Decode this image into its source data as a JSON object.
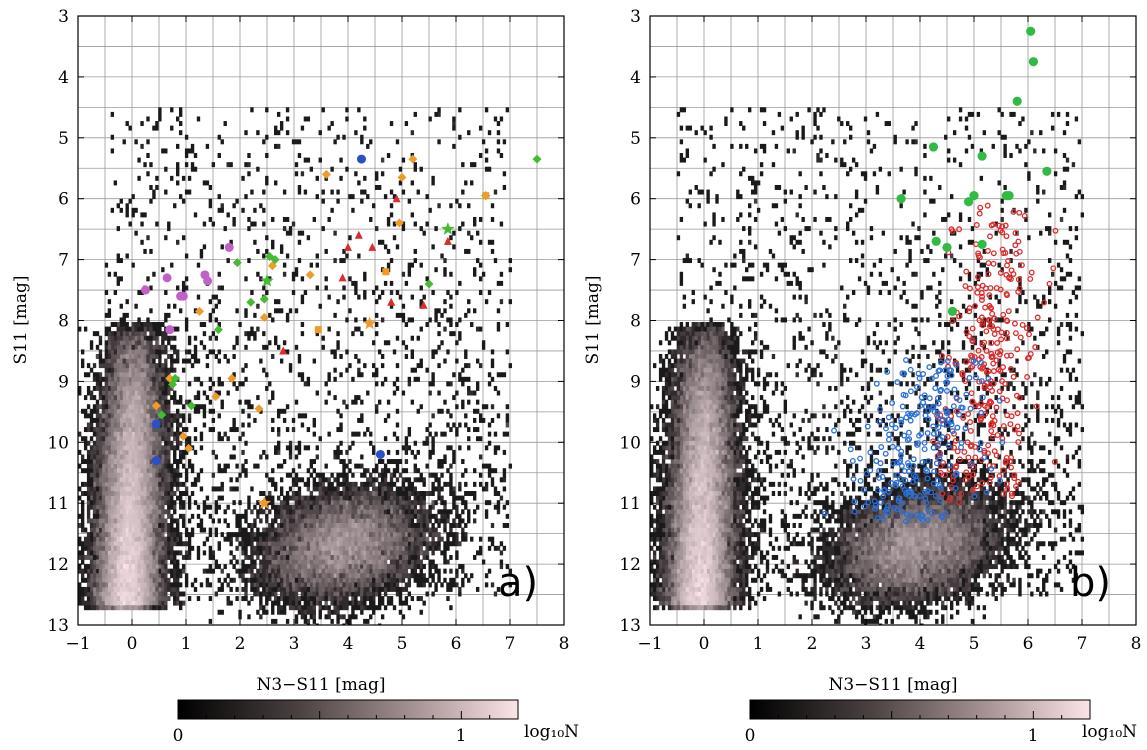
{
  "chart_data": [
    {
      "type": "scatter",
      "panel_label": "a)",
      "xlabel": "N3−S11 [mag]",
      "ylabel": "S11 [mag]",
      "xlim": [
        -1,
        8
      ],
      "ylim": [
        13,
        3
      ],
      "y_inverted": true,
      "x_ticks": [
        "−1",
        "0",
        "1",
        "2",
        "3",
        "4",
        "5",
        "6",
        "7",
        "8"
      ],
      "y_ticks": [
        "3",
        "4",
        "5",
        "6",
        "7",
        "8",
        "9",
        "10",
        "11",
        "12",
        "13"
      ],
      "grid": true,
      "background": "2D density histogram of sources (grayscale, log10 N)",
      "series": [
        {
          "marker": "circle",
          "color": "#c060c8",
          "points": [
            [
              0.25,
              7.5
            ],
            [
              0.65,
              7.3
            ],
            [
              0.9,
              7.6
            ],
            [
              1.35,
              7.25
            ],
            [
              1.8,
              6.8
            ],
            [
              1.4,
              7.35
            ],
            [
              0.7,
              8.15
            ],
            [
              0.95,
              7.6
            ]
          ]
        },
        {
          "marker": "circle",
          "color": "#2a4fc8",
          "points": [
            [
              0.45,
              9.7
            ],
            [
              0.45,
              10.3
            ],
            [
              4.25,
              5.35
            ],
            [
              4.6,
              10.2
            ]
          ]
        },
        {
          "marker": "diamond",
          "color": "#f09a28",
          "points": [
            [
              0.7,
              8.95
            ],
            [
              0.45,
              9.4
            ],
            [
              0.95,
              9.9
            ],
            [
              1.05,
              10.1
            ],
            [
              1.25,
              7.85
            ],
            [
              1.55,
              9.25
            ],
            [
              1.85,
              8.95
            ],
            [
              2.35,
              9.45
            ],
            [
              2.45,
              7.95
            ],
            [
              2.6,
              7.1
            ],
            [
              3.6,
              5.6
            ],
            [
              3.3,
              7.25
            ],
            [
              5.2,
              5.35
            ],
            [
              5.0,
              5.65
            ],
            [
              4.95,
              6.4
            ]
          ]
        },
        {
          "marker": "diamond",
          "color": "#44bb33",
          "points": [
            [
              0.55,
              9.55
            ],
            [
              0.75,
              9.05
            ],
            [
              0.8,
              8.95
            ],
            [
              1.1,
              9.4
            ],
            [
              1.6,
              8.15
            ],
            [
              1.95,
              7.05
            ],
            [
              2.2,
              7.7
            ],
            [
              2.45,
              7.65
            ],
            [
              2.55,
              6.95
            ],
            [
              2.65,
              7.0
            ],
            [
              5.5,
              7.4
            ],
            [
              6.55,
              5.95
            ],
            [
              7.5,
              5.35
            ]
          ]
        },
        {
          "marker": "triangle",
          "color": "#dd2a2a",
          "points": [
            [
              2.8,
              8.5
            ],
            [
              4.0,
              6.8
            ],
            [
              4.2,
              6.6
            ],
            [
              4.45,
              6.8
            ],
            [
              4.8,
              7.7
            ],
            [
              4.9,
              6.0
            ],
            [
              5.4,
              7.75
            ],
            [
              5.85,
              6.7
            ],
            [
              3.9,
              7.3
            ]
          ]
        },
        {
          "marker": "square",
          "color": "#f09a28",
          "points": [
            [
              3.45,
              8.15
            ],
            [
              4.7,
              7.2
            ],
            [
              6.55,
              5.95
            ]
          ]
        },
        {
          "marker": "star",
          "color": "#f09a28",
          "points": [
            [
              2.45,
              11.0
            ],
            [
              4.4,
              8.05
            ]
          ]
        },
        {
          "marker": "star",
          "color": "#44bb33",
          "points": [
            [
              5.85,
              6.5
            ],
            [
              2.5,
              7.35
            ]
          ]
        }
      ],
      "colorbar": {
        "label": "log₁₀N",
        "tick_labels": [
          "0",
          "1"
        ],
        "range": [
          0,
          1.2
        ],
        "colormap": "black → light pink"
      }
    },
    {
      "type": "scatter",
      "panel_label": "b)",
      "xlabel": "N3−S11 [mag]",
      "ylabel": "S11 [mag]",
      "xlim": [
        -1,
        8
      ],
      "ylim": [
        13,
        3
      ],
      "y_inverted": true,
      "x_ticks": [
        "−1",
        "0",
        "1",
        "2",
        "3",
        "4",
        "5",
        "6",
        "7",
        "8"
      ],
      "y_ticks": [
        "3",
        "4",
        "5",
        "6",
        "7",
        "8",
        "9",
        "10",
        "11",
        "12",
        "13"
      ],
      "grid": true,
      "background": "2D density histogram of sources (grayscale, log10 N)",
      "series": [
        {
          "marker": "open circle (large cloud)",
          "color": "#dd2a2a",
          "region": "about x 4.0–6.8, y 6.0–11.0 (approx. 300 points)"
        },
        {
          "marker": "open circle (large cloud)",
          "color": "#2a6fd8",
          "region": "about x 2.8–5.8, y 8.5–11.3 (approx. 250 points)"
        },
        {
          "marker": "filled circle",
          "color": "#2fbb44",
          "points": [
            [
              6.05,
              3.25
            ],
            [
              6.1,
              3.75
            ],
            [
              5.8,
              4.4
            ],
            [
              4.25,
              5.15
            ],
            [
              5.15,
              5.3
            ],
            [
              6.35,
              5.55
            ],
            [
              3.65,
              6.0
            ],
            [
              4.9,
              6.05
            ],
            [
              5.0,
              5.95
            ],
            [
              5.6,
              5.95
            ],
            [
              4.3,
              6.7
            ],
            [
              4.5,
              6.8
            ],
            [
              5.15,
              6.75
            ],
            [
              4.6,
              7.85
            ],
            [
              5.65,
              5.95
            ]
          ]
        }
      ],
      "colorbar": {
        "label": "log₁₀N",
        "tick_labels": [
          "0",
          "1"
        ],
        "range": [
          0,
          1.2
        ],
        "colormap": "black → light pink"
      }
    }
  ]
}
